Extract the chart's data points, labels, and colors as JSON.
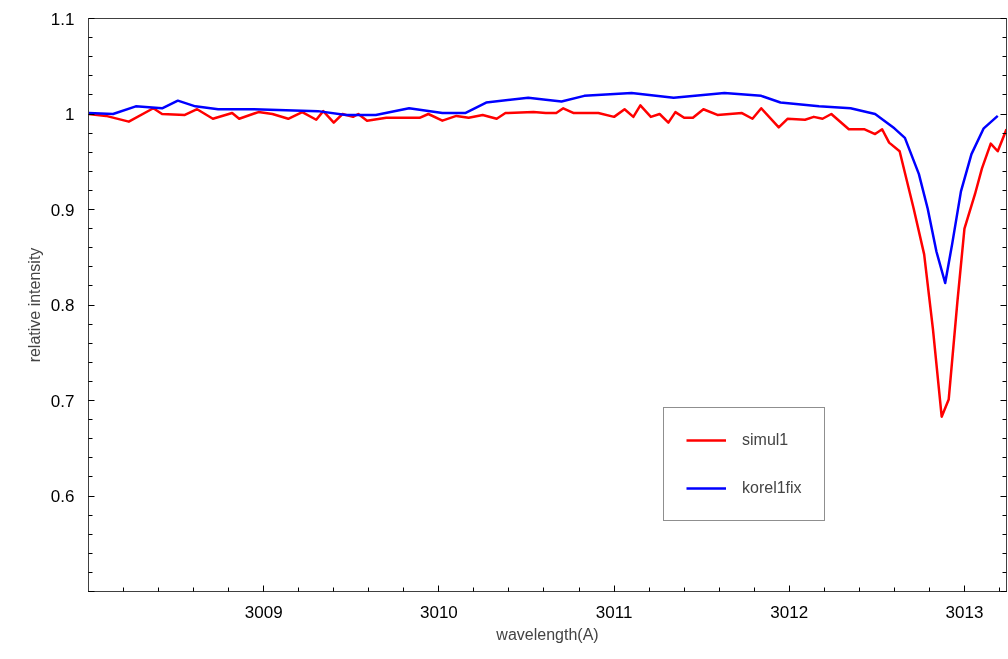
{
  "chart_data": {
    "type": "line",
    "xlabel": "wavelength(A)",
    "ylabel": "relative intensity",
    "xlim": [
      3008.0,
      3013.24
    ],
    "ylim": [
      0.5,
      1.1
    ],
    "xticks": [
      3009,
      3010,
      3011,
      3012,
      3013
    ],
    "yticks": [
      {
        "value": 0.5,
        "label": null
      },
      0.6,
      0.7,
      0.8,
      0.9,
      1,
      1.1
    ],
    "grid": false,
    "legend": "bottom right",
    "marker": "none",
    "line_style": "solid",
    "series": [
      {
        "name": "simul1",
        "color": "#ff0000",
        "x": [
          3008.0,
          3008.1,
          3008.23,
          3008.37,
          3008.42,
          3008.55,
          3008.62,
          3008.71,
          3008.82,
          3008.86,
          3008.97,
          3009.05,
          3009.14,
          3009.22,
          3009.3,
          3009.34,
          3009.4,
          3009.45,
          3009.51,
          3009.54,
          3009.59,
          3009.7,
          3009.89,
          3009.94,
          3010.02,
          3010.1,
          3010.17,
          3010.25,
          3010.33,
          3010.38,
          3010.54,
          3010.61,
          3010.67,
          3010.71,
          3010.77,
          3010.91,
          3011.0,
          3011.06,
          3011.11,
          3011.15,
          3011.21,
          3011.26,
          3011.31,
          3011.35,
          3011.4,
          3011.45,
          3011.51,
          3011.59,
          3011.73,
          3011.79,
          3011.84,
          3011.94,
          3011.99,
          3012.09,
          3012.14,
          3012.19,
          3012.24,
          3012.34,
          3012.43,
          3012.49,
          3012.53,
          3012.57,
          3012.63,
          3012.71,
          3012.77,
          3012.82,
          3012.87,
          3012.91,
          3012.96,
          3013.0,
          3013.06,
          3013.1,
          3013.15,
          3013.19,
          3013.24
        ],
        "values": [
          1.0,
          0.998,
          0.992,
          1.006,
          1.0,
          0.999,
          1.005,
          0.995,
          1.001,
          0.995,
          1.002,
          1.0,
          0.995,
          1.002,
          0.994,
          1.003,
          0.991,
          1.0,
          0.997,
          1.0,
          0.993,
          0.996,
          0.996,
          1.0,
          0.993,
          0.998,
          0.996,
          0.999,
          0.995,
          1.001,
          1.002,
          1.001,
          1.001,
          1.006,
          1.001,
          1.001,
          0.997,
          1.005,
          0.997,
          1.009,
          0.997,
          1.0,
          0.991,
          1.002,
          0.996,
          0.996,
          1.005,
          0.999,
          1.001,
          0.995,
          1.006,
          0.986,
          0.995,
          0.994,
          0.997,
          0.995,
          1.0,
          0.984,
          0.984,
          0.979,
          0.984,
          0.97,
          0.961,
          0.901,
          0.853,
          0.775,
          0.683,
          0.701,
          0.804,
          0.88,
          0.916,
          0.943,
          0.969,
          0.961,
          0.984
        ]
      },
      {
        "name": "korel1fix",
        "color": "#0000ff",
        "x": [
          3008.0,
          3008.14,
          3008.27,
          3008.42,
          3008.51,
          3008.61,
          3008.74,
          3008.94,
          3009.31,
          3009.47,
          3009.64,
          3009.83,
          3010.02,
          3010.15,
          3010.27,
          3010.51,
          3010.61,
          3010.7,
          3010.83,
          3011.1,
          3011.34,
          3011.63,
          3011.84,
          3011.95,
          3012.17,
          3012.35,
          3012.49,
          3012.6,
          3012.66,
          3012.74,
          3012.79,
          3012.84,
          3012.89,
          3012.93,
          3012.98,
          3013.04,
          3013.11,
          3013.19
        ],
        "values": [
          1.001,
          1.0,
          1.008,
          1.006,
          1.014,
          1.008,
          1.005,
          1.005,
          1.003,
          0.999,
          0.999,
          1.006,
          1.001,
          1.001,
          1.012,
          1.017,
          1.015,
          1.013,
          1.019,
          1.022,
          1.017,
          1.022,
          1.019,
          1.012,
          1.008,
          1.006,
          1.0,
          0.985,
          0.975,
          0.937,
          0.901,
          0.856,
          0.823,
          0.864,
          0.919,
          0.958,
          0.985,
          0.998
        ]
      }
    ]
  }
}
